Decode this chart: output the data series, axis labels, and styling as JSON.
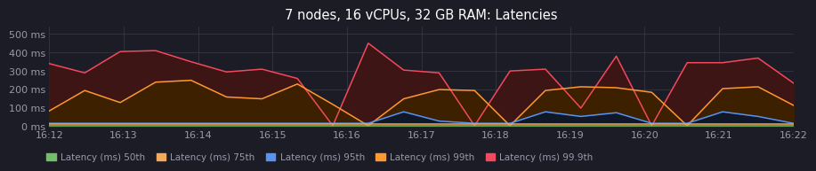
{
  "title": "7 nodes, 16 vCPUs, 32 GB RAM: Latencies",
  "background_color": "#1c1c27",
  "plot_bg_color": "#1c1c27",
  "grid_color": "#3a3a4a",
  "text_color": "#9999aa",
  "x_labels": [
    "16:12",
    "16:13",
    "16:14",
    "16:15",
    "16:16",
    "16:17",
    "16:18",
    "16:19",
    "16:20",
    "16:21",
    "16:22"
  ],
  "x_ticks_pos": [
    0,
    1,
    2,
    3,
    4,
    5,
    6,
    7,
    8,
    9,
    10
  ],
  "ylim": [
    0,
    540
  ],
  "yticks": [
    0,
    100,
    200,
    300,
    400,
    500
  ],
  "ytick_labels": [
    "0 ms",
    "100 ms",
    "200 ms",
    "300 ms",
    "400 ms",
    "500 ms"
  ],
  "series": {
    "p50": {
      "label": "Latency (ms) 50th",
      "color": "#73bf69",
      "values": [
        5,
        5,
        5,
        5,
        5,
        5,
        5,
        5,
        5,
        5,
        5,
        5,
        5,
        5,
        5,
        5,
        5,
        5,
        5,
        5,
        5,
        5
      ]
    },
    "p75": {
      "label": "Latency (ms) 75th",
      "color": "#f2a95a",
      "values": [
        12,
        12,
        12,
        12,
        12,
        12,
        12,
        12,
        12,
        12,
        12,
        12,
        12,
        12,
        12,
        12,
        12,
        12,
        12,
        12,
        12,
        12
      ]
    },
    "p95": {
      "label": "Latency (ms) 95th",
      "color": "#5794f2",
      "values": [
        18,
        18,
        18,
        18,
        18,
        18,
        18,
        18,
        18,
        18,
        80,
        30,
        18,
        18,
        80,
        55,
        75,
        18,
        18,
        80,
        55,
        18
      ]
    },
    "p99": {
      "label": "Latency (ms) 99th",
      "color": "#ff9830",
      "values": [
        85,
        195,
        130,
        240,
        250,
        160,
        150,
        230,
        120,
        5,
        150,
        200,
        195,
        5,
        195,
        215,
        210,
        185,
        5,
        205,
        215,
        115
      ]
    },
    "p999": {
      "label": "Latency (ms) 99.9th",
      "color": "#f2495c",
      "values": [
        340,
        290,
        405,
        410,
        350,
        295,
        310,
        260,
        5,
        450,
        305,
        290,
        5,
        300,
        310,
        100,
        380,
        5,
        345,
        345,
        370,
        235
      ]
    }
  },
  "fill_p999": "#3d1515",
  "fill_p99": "#3d2000",
  "fill_p95": "#101828",
  "fill_p75": "#2a1800",
  "fill_p50": "#1a3318"
}
